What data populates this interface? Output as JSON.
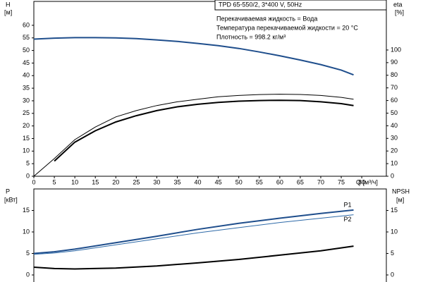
{
  "chart_data": [
    {
      "type": "line",
      "title": "TPD 65-550/2, 3*400 V, 50Hz",
      "annotations": [
        "Перекачиваемая жидкость = Вода",
        "Температура перекачиваемой жидкости = 20 °C",
        "Плотность = 998.2 кг/м³"
      ],
      "y_label": "H",
      "y_unit": "[м]",
      "y2_label": "eta",
      "y2_unit": "[%]",
      "x_label": "Q [м³/ч]",
      "x": [
        0,
        5,
        10,
        15,
        20,
        25,
        30,
        35,
        40,
        45,
        50,
        55,
        60,
        65,
        70,
        75,
        78
      ],
      "xlim": [
        0,
        86
      ],
      "xticks": [
        0,
        5,
        10,
        15,
        20,
        25,
        30,
        35,
        40,
        45,
        50,
        55,
        60,
        65,
        70,
        75,
        80
      ],
      "ylim": [
        0,
        69.5
      ],
      "yticks": [
        0,
        5,
        10,
        15,
        20,
        25,
        30,
        35,
        40,
        45,
        50,
        55,
        60
      ],
      "y2lim": [
        0,
        138.5
      ],
      "y2ticks": [
        0,
        10,
        20,
        30,
        40,
        50,
        60,
        70,
        80,
        90,
        100
      ],
      "series": [
        {
          "color": "#1f4e8c",
          "width": 2,
          "values": [
            54.5,
            54.9,
            55.1,
            55.1,
            55.0,
            54.7,
            54.2,
            53.6,
            52.8,
            51.9,
            50.8,
            49.4,
            47.9,
            46.2,
            44.4,
            42.2,
            40.3
          ]
        },
        {
          "color": "#000000",
          "width": 1,
          "axis": "y2",
          "values": [
            0,
            14,
            29,
            39,
            47,
            52,
            56,
            59,
            61,
            63,
            64,
            64.7,
            65,
            64.8,
            64,
            62.5,
            61
          ]
        },
        {
          "color": "#000000",
          "width": 2,
          "axis": "y2",
          "values": [
            null,
            12,
            27,
            36,
            43,
            48,
            52,
            55,
            57,
            58.5,
            59.5,
            60,
            60.2,
            60,
            59,
            57.5,
            56
          ]
        }
      ]
    },
    {
      "type": "line",
      "y_label": "P",
      "y_unit": "[кВт]",
      "y2_label": "NPSH",
      "y2_unit": "[м]",
      "x": [
        0,
        5,
        10,
        20,
        30,
        40,
        50,
        60,
        70,
        78
      ],
      "xlim": [
        0,
        86
      ],
      "ylim": [
        0,
        20
      ],
      "yticks": [
        0,
        5,
        10,
        15
      ],
      "y2lim": [
        0,
        20
      ],
      "y2ticks": [
        0,
        5,
        10,
        15
      ],
      "series": [
        {
          "name": "P1",
          "color": "#1f4e8c",
          "width": 2,
          "values": [
            5,
            5.4,
            6,
            7.5,
            9,
            10.6,
            12,
            13.2,
            14.3,
            15.1
          ]
        },
        {
          "name": "P2",
          "color": "#2e6aa8",
          "width": 1,
          "values": [
            4.8,
            5.1,
            5.6,
            7,
            8.4,
            9.8,
            11,
            12.2,
            13.2,
            14
          ]
        },
        {
          "color": "#000000",
          "width": 2,
          "axis": "y2",
          "values": [
            1.8,
            1.5,
            1.4,
            1.6,
            2.1,
            2.8,
            3.6,
            4.6,
            5.6,
            6.7
          ]
        }
      ]
    }
  ]
}
